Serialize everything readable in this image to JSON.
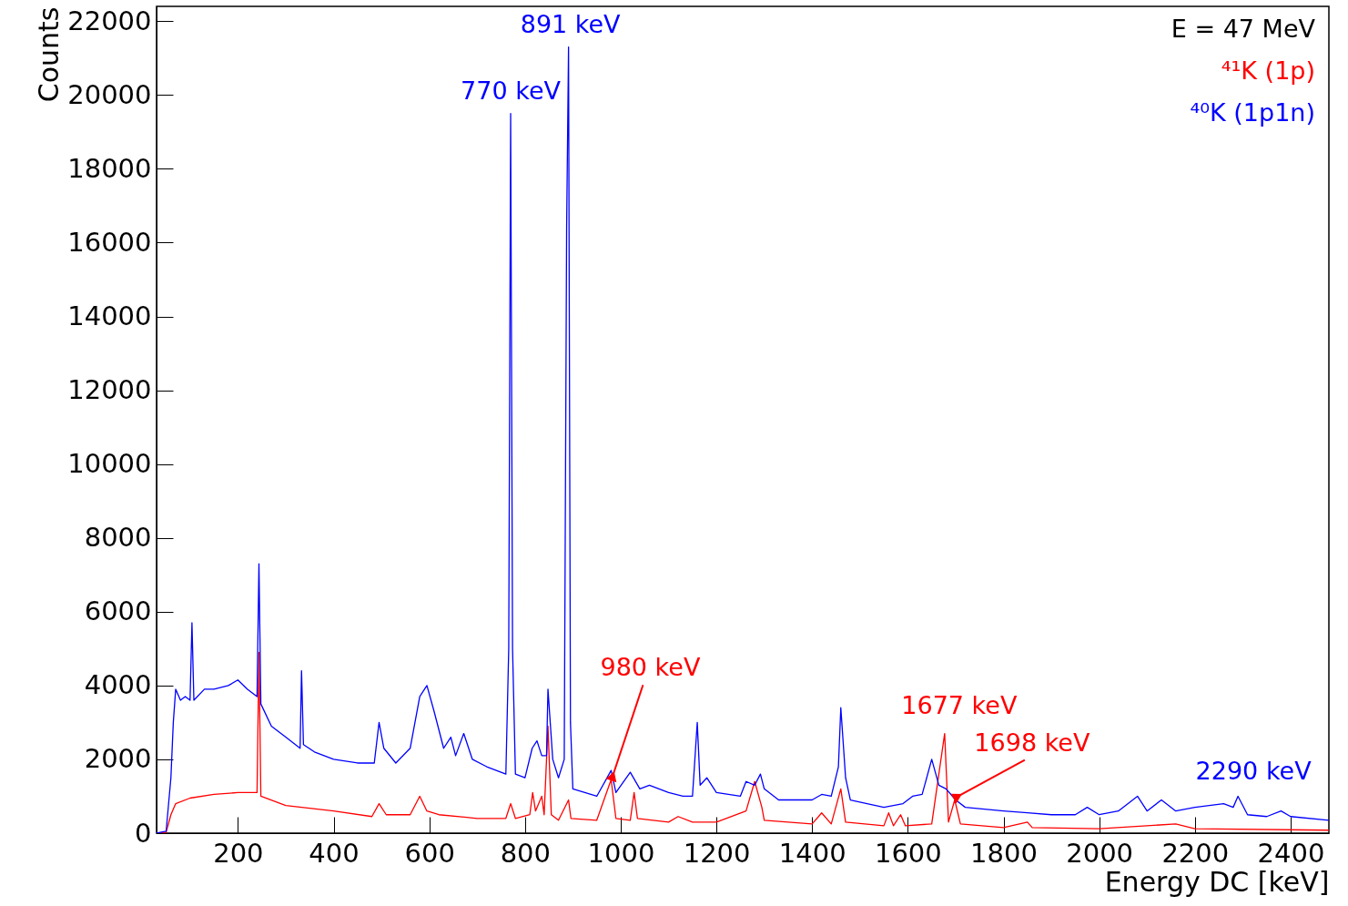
{
  "chart_data": {
    "type": "line",
    "xlabel": "Energy DC [keV]",
    "ylabel": "Counts",
    "legend": "top right",
    "grid": false,
    "xlim": [
      30,
      2480
    ],
    "ylim": [
      0,
      22400
    ],
    "xticks": [
      200,
      400,
      600,
      800,
      1000,
      1200,
      1400,
      1600,
      1800,
      2000,
      2200,
      2400
    ],
    "yticks": [
      0,
      2000,
      4000,
      6000,
      8000,
      10000,
      12000,
      14000,
      16000,
      18000,
      20000,
      22000
    ],
    "annotations": [
      "E = 47 MeV",
      {
        "text": "770 keV",
        "x": 770,
        "y": 19500
      },
      {
        "text": "891 keV",
        "x": 891,
        "y": 21300
      },
      {
        "text": "980 keV",
        "x": 980,
        "y": 1450
      },
      {
        "text": "1677 keV",
        "x": 1677,
        "y": 2700
      },
      {
        "text": "1698 keV",
        "x": 1698,
        "y": 900
      },
      {
        "text": "2290 keV",
        "x": 2290,
        "y": 1000
      }
    ],
    "series": [
      {
        "name": "⁴¹K (1p)",
        "color": "#ff0000",
        "x": [
          30,
          50,
          60,
          70,
          100,
          150,
          200,
          240,
          244,
          248,
          300,
          400,
          480,
          495,
          510,
          560,
          580,
          595,
          620,
          700,
          760,
          770,
          780,
          810,
          816,
          822,
          835,
          840,
          848,
          855,
          870,
          891,
          896,
          950,
          980,
          990,
          1020,
          1028,
          1035,
          1100,
          1120,
          1150,
          1200,
          1262,
          1280,
          1295,
          1300,
          1400,
          1420,
          1440,
          1460,
          1470,
          1550,
          1560,
          1570,
          1585,
          1595,
          1650,
          1677,
          1685,
          1698,
          1710,
          1800,
          1850,
          1860,
          2000,
          2160,
          2200,
          2480
        ],
        "values": [
          0,
          20,
          500,
          800,
          950,
          1050,
          1100,
          1100,
          4900,
          1000,
          750,
          600,
          450,
          800,
          500,
          500,
          1000,
          600,
          500,
          400,
          400,
          800,
          400,
          500,
          1100,
          600,
          1000,
          500,
          2900,
          500,
          350,
          900,
          400,
          350,
          1450,
          400,
          350,
          1100,
          400,
          300,
          450,
          300,
          300,
          600,
          1400,
          700,
          350,
          250,
          550,
          250,
          1200,
          300,
          200,
          550,
          200,
          500,
          200,
          250,
          2700,
          300,
          900,
          250,
          150,
          300,
          150,
          120,
          250,
          120,
          80
        ]
      },
      {
        "name": "⁴⁰K (1p1n)",
        "color": "#0000ff",
        "x": [
          30,
          50,
          60,
          65,
          70,
          80,
          90,
          100,
          104,
          108,
          130,
          150,
          180,
          200,
          220,
          240,
          244,
          248,
          270,
          300,
          330,
          333,
          337,
          360,
          400,
          450,
          485,
          495,
          505,
          530,
          560,
          580,
          595,
          610,
          630,
          645,
          655,
          672,
          690,
          720,
          760,
          766,
          770,
          774,
          780,
          800,
          815,
          825,
          835,
          845,
          848,
          858,
          870,
          882,
          887,
          891,
          895,
          900,
          950,
          980,
          990,
          1020,
          1040,
          1060,
          1100,
          1130,
          1150,
          1160,
          1166,
          1180,
          1200,
          1250,
          1262,
          1280,
          1292,
          1300,
          1330,
          1400,
          1420,
          1440,
          1455,
          1460,
          1470,
          1480,
          1550,
          1590,
          1610,
          1630,
          1650,
          1665,
          1680,
          1700,
          1720,
          1800,
          1850,
          1900,
          1950,
          1975,
          2000,
          2040,
          2080,
          2100,
          2130,
          2160,
          2200,
          2260,
          2280,
          2290,
          2310,
          2350,
          2380,
          2400,
          2480
        ],
        "values": [
          0,
          50,
          1500,
          3000,
          3900,
          3600,
          3700,
          3600,
          5700,
          3600,
          3900,
          3900,
          4000,
          4150,
          3900,
          3700,
          7300,
          3500,
          2900,
          2600,
          2300,
          4400,
          2400,
          2200,
          2000,
          1900,
          1900,
          3000,
          2300,
          1900,
          2300,
          3700,
          4000,
          3300,
          2300,
          2600,
          2100,
          2700,
          2000,
          1800,
          1600,
          5000,
          19500,
          5000,
          1600,
          1500,
          2300,
          2500,
          2100,
          2100,
          3900,
          2000,
          1500,
          2000,
          16400,
          21300,
          3000,
          1200,
          1000,
          1700,
          1100,
          1650,
          1200,
          1300,
          1100,
          1000,
          1000,
          3000,
          1300,
          1500,
          1100,
          1000,
          1400,
          1300,
          1600,
          1200,
          900,
          900,
          1050,
          1000,
          1800,
          3400,
          1500,
          900,
          700,
          800,
          1000,
          1050,
          2000,
          1300,
          1200,
          900,
          700,
          600,
          550,
          500,
          500,
          700,
          500,
          600,
          1000,
          600,
          900,
          600,
          700,
          800,
          700,
          1000,
          500,
          450,
          600,
          450,
          350
        ]
      }
    ]
  }
}
